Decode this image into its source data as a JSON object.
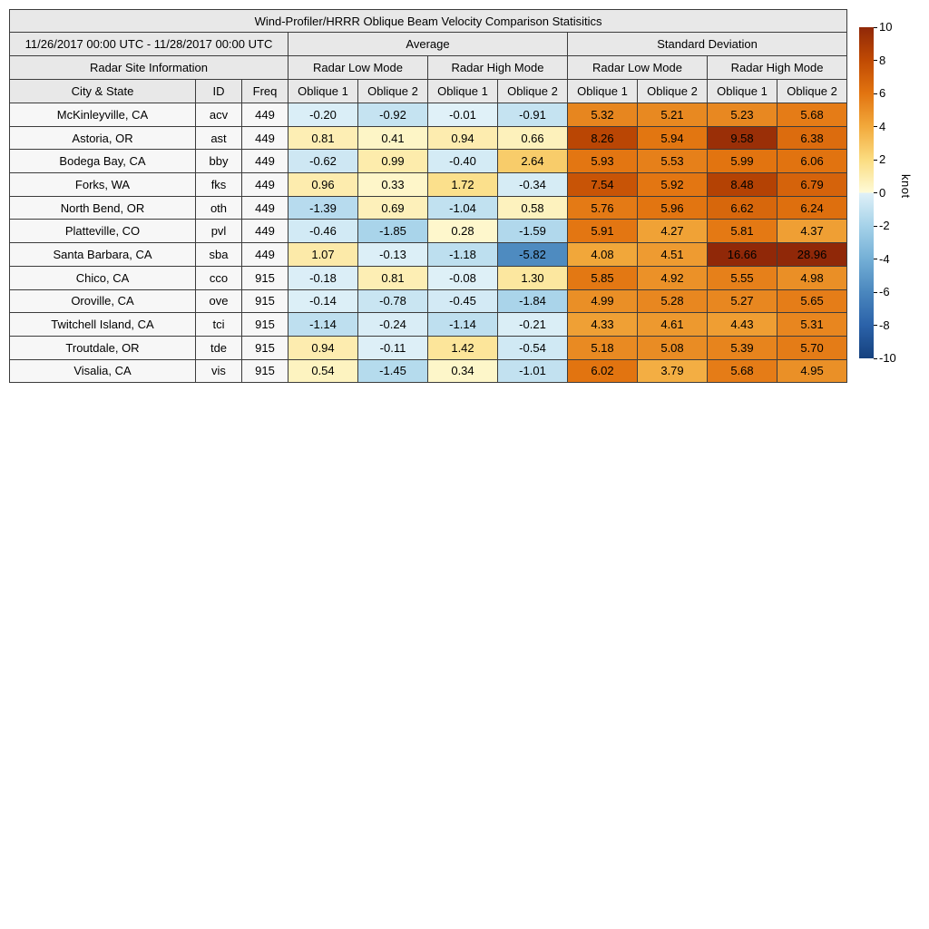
{
  "title": "Wind-Profiler/HRRR Oblique Beam Velocity Comparison Statisitics",
  "date_range": "11/26/2017 00:00 UTC - 11/28/2017 00:00 UTC",
  "headers": {
    "average": "Average",
    "std_dev": "Standard Deviation",
    "site_info": "Radar Site Information",
    "low_mode": "Radar Low Mode",
    "high_mode": "Radar High Mode",
    "city": "City & State",
    "id": "ID",
    "freq": "Freq",
    "oblique1": "Oblique 1",
    "oblique2": "Oblique 2"
  },
  "colorbar": {
    "label": "knot",
    "min": -10,
    "max": 10,
    "ticks": [
      10,
      8,
      6,
      4,
      2,
      0,
      -2,
      -4,
      -6,
      -8,
      -10
    ],
    "stops": [
      {
        "v": 10,
        "c": "#902808"
      },
      {
        "v": 8,
        "c": "#C04A03"
      },
      {
        "v": 6,
        "c": "#E27410"
      },
      {
        "v": 4,
        "c": "#F2A93C"
      },
      {
        "v": 2,
        "c": "#FBDC80"
      },
      {
        "v": 0,
        "c": "#FEFBD8"
      },
      {
        "v": 0,
        "c": "#E0F1F8"
      },
      {
        "v": -2,
        "c": "#A5D2E9"
      },
      {
        "v": -4,
        "c": "#74AFD6"
      },
      {
        "v": -6,
        "c": "#4A87BE"
      },
      {
        "v": -8,
        "c": "#2B62A9"
      },
      {
        "v": -10,
        "c": "#15417E"
      }
    ]
  },
  "chart_data": {
    "type": "heatmap",
    "title": "Wind-Profiler/HRRR Oblique Beam Velocity Comparison Statisitics",
    "unit": "knot",
    "value_range": [
      -10,
      10
    ],
    "column_groups": [
      "Average / Radar Low Mode",
      "Average / Radar High Mode",
      "Standard Deviation / Radar Low Mode",
      "Standard Deviation / Radar High Mode"
    ],
    "columns": [
      "Oblique 1",
      "Oblique 2",
      "Oblique 1",
      "Oblique 2",
      "Oblique 1",
      "Oblique 2",
      "Oblique 1",
      "Oblique 2"
    ],
    "rows": [
      {
        "city": "McKinleyville, CA",
        "id": "acv",
        "freq": "449",
        "values": [
          -0.2,
          -0.92,
          -0.01,
          -0.91,
          5.32,
          5.21,
          5.23,
          5.68
        ]
      },
      {
        "city": "Astoria, OR",
        "id": "ast",
        "freq": "449",
        "values": [
          0.81,
          0.41,
          0.94,
          0.66,
          8.26,
          5.94,
          9.58,
          6.38
        ]
      },
      {
        "city": "Bodega Bay, CA",
        "id": "bby",
        "freq": "449",
        "values": [
          -0.62,
          0.99,
          -0.4,
          2.64,
          5.93,
          5.53,
          5.99,
          6.06
        ]
      },
      {
        "city": "Forks, WA",
        "id": "fks",
        "freq": "449",
        "values": [
          0.96,
          0.33,
          1.72,
          -0.34,
          7.54,
          5.92,
          8.48,
          6.79
        ]
      },
      {
        "city": "North Bend, OR",
        "id": "oth",
        "freq": "449",
        "values": [
          -1.39,
          0.69,
          -1.04,
          0.58,
          5.76,
          5.96,
          6.62,
          6.24
        ]
      },
      {
        "city": "Platteville, CO",
        "id": "pvl",
        "freq": "449",
        "values": [
          -0.46,
          -1.85,
          0.28,
          -1.59,
          5.91,
          4.27,
          5.81,
          4.37
        ]
      },
      {
        "city": "Santa Barbara, CA",
        "id": "sba",
        "freq": "449",
        "values": [
          1.07,
          -0.13,
          -1.18,
          -5.82,
          4.08,
          4.51,
          16.66,
          28.96
        ]
      },
      {
        "city": "Chico, CA",
        "id": "cco",
        "freq": "915",
        "values": [
          -0.18,
          0.81,
          -0.08,
          1.3,
          5.85,
          4.92,
          5.55,
          4.98
        ]
      },
      {
        "city": "Oroville, CA",
        "id": "ove",
        "freq": "915",
        "values": [
          -0.14,
          -0.78,
          -0.45,
          -1.84,
          4.99,
          5.28,
          5.27,
          5.65
        ]
      },
      {
        "city": "Twitchell Island, CA",
        "id": "tci",
        "freq": "915",
        "values": [
          -1.14,
          -0.24,
          -1.14,
          -0.21,
          4.33,
          4.61,
          4.43,
          5.31
        ]
      },
      {
        "city": "Troutdale, OR",
        "id": "tde",
        "freq": "915",
        "values": [
          0.94,
          -0.11,
          1.42,
          -0.54,
          5.18,
          5.08,
          5.39,
          5.7
        ]
      },
      {
        "city": "Visalia, CA",
        "id": "vis",
        "freq": "915",
        "values": [
          0.54,
          -1.45,
          0.34,
          -1.01,
          6.02,
          3.79,
          5.68,
          4.95
        ]
      }
    ]
  }
}
